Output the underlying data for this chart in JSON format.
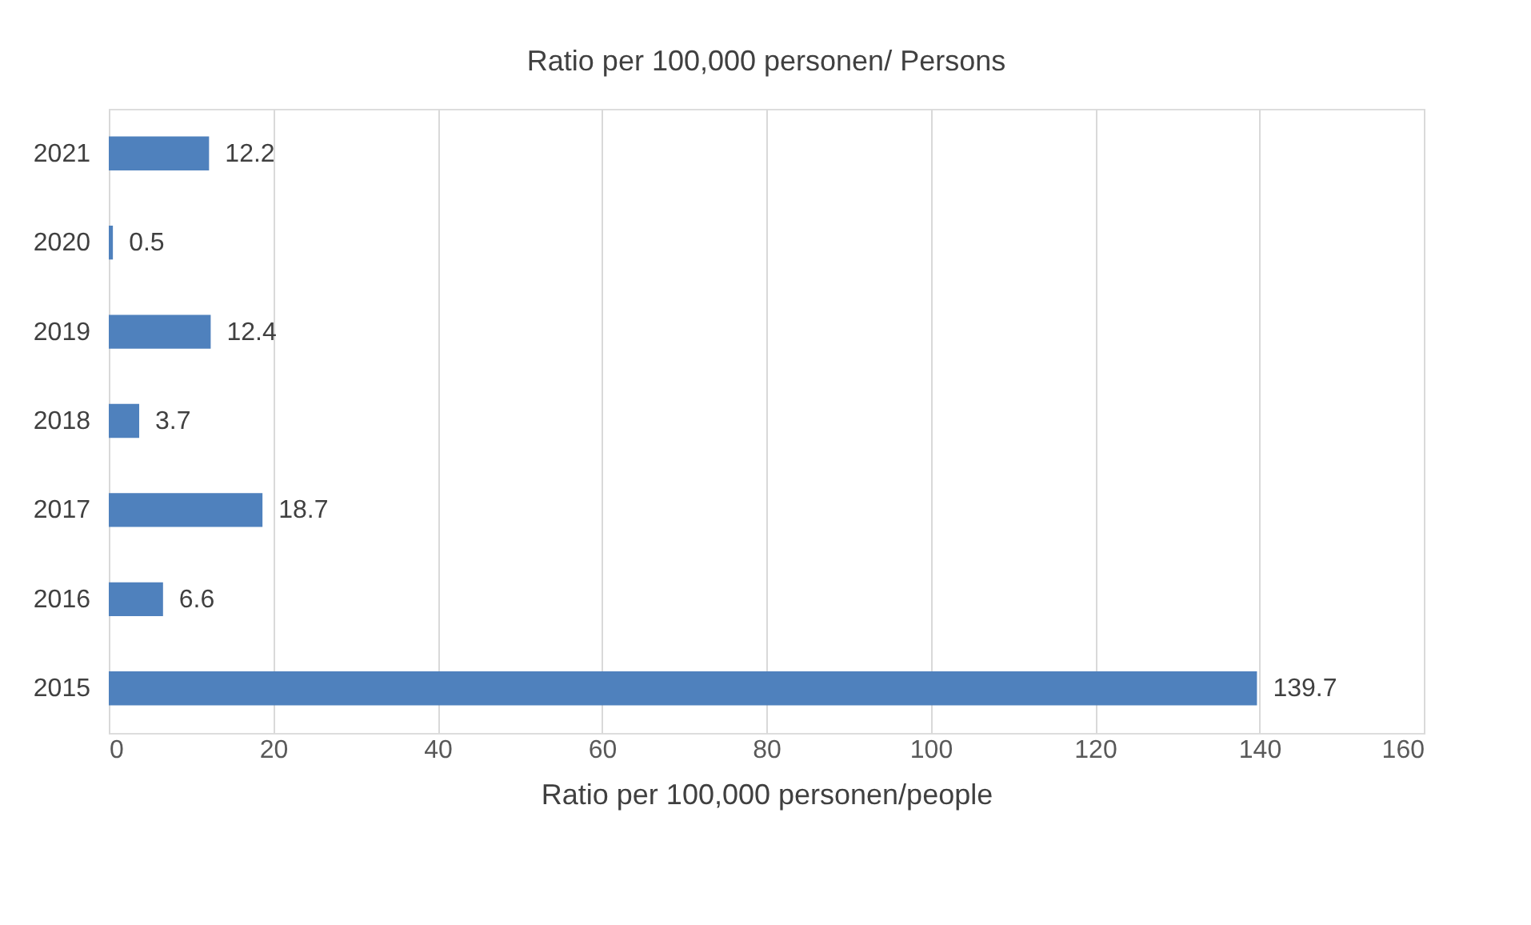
{
  "chart_data": {
    "type": "bar",
    "orientation": "horizontal",
    "title": "Ratio per 100,000 personen/ Persons",
    "xlabel": "Ratio per 100,000 personen/people",
    "categories": [
      "2021",
      "2020",
      "2019",
      "2018",
      "2017",
      "2016",
      "2015"
    ],
    "values": [
      12.2,
      0.5,
      12.4,
      3.7,
      18.7,
      6.6,
      139.7
    ],
    "color": "#4f81bd",
    "xlim": [
      0,
      160
    ],
    "xticks": [
      0,
      20,
      40,
      60,
      80,
      100,
      120,
      140,
      160
    ],
    "grid": "x",
    "data_labels": true
  }
}
